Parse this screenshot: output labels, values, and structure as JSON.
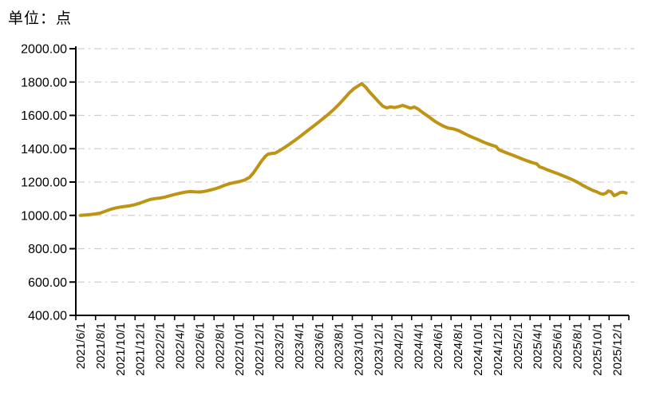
{
  "page": {
    "background": "#FFFFFF"
  },
  "header": {
    "unit_label": "单位：点"
  },
  "chart_data": {
    "type": "line",
    "title": "单位：点",
    "legend": "none",
    "grid": {
      "orientation": "horizontal",
      "style": "dash-dot",
      "color": "#D0D0D0"
    },
    "axis_color": "#000000",
    "y_axis": {
      "min": 400,
      "max": 2000,
      "step": 200,
      "tick_labels": [
        "2000.00",
        "1800.00",
        "1600.00",
        "1400.00",
        "1200.00",
        "1000.00",
        "800.00",
        "600.00",
        "400.00"
      ]
    },
    "x_axis": {
      "tick_labels": [
        "2021/6/1",
        "2021/8/1",
        "2021/10/1",
        "2021/12/1",
        "2022/2/1",
        "2022/4/1",
        "2022/6/1",
        "2022/8/1",
        "2022/10/1",
        "2022/12/1",
        "2023/2/1",
        "2023/4/1",
        "2023/6/1",
        "2023/8/1",
        "2023/10/1",
        "2023/12/1",
        "2024/2/1",
        "2024/4/1",
        "2024/6/1",
        "2024/8/1",
        "2024/10/1",
        "2024/12/1",
        "2025/2/1",
        "2025/4/1",
        "2025/6/1",
        "2025/8/1",
        "2025/10/1",
        "2025/12/1"
      ],
      "label_rotation_deg": -90
    },
    "points_format": "[months_since_2021/6/1, index_value]",
    "series": [
      {
        "color": "#BF9414",
        "stroke_width": 4,
        "points": [
          [
            0,
            1000
          ],
          [
            0.5,
            1002
          ],
          [
            1,
            1005
          ],
          [
            1.5,
            1009
          ],
          [
            2,
            1014
          ],
          [
            2.5,
            1025
          ],
          [
            3,
            1036
          ],
          [
            3.5,
            1044
          ],
          [
            4,
            1050
          ],
          [
            4.5,
            1054
          ],
          [
            5,
            1058
          ],
          [
            5.5,
            1065
          ],
          [
            6,
            1074
          ],
          [
            6.5,
            1085
          ],
          [
            7,
            1095
          ],
          [
            7.5,
            1101
          ],
          [
            8,
            1104
          ],
          [
            8.5,
            1110
          ],
          [
            9,
            1118
          ],
          [
            9.5,
            1126
          ],
          [
            10,
            1133
          ],
          [
            10.5,
            1139
          ],
          [
            11,
            1143
          ],
          [
            11.5,
            1141
          ],
          [
            12,
            1140
          ],
          [
            12.5,
            1144
          ],
          [
            13,
            1151
          ],
          [
            13.5,
            1159
          ],
          [
            14,
            1169
          ],
          [
            14.5,
            1181
          ],
          [
            15,
            1190
          ],
          [
            15.5,
            1197
          ],
          [
            16,
            1203
          ],
          [
            16.5,
            1212
          ],
          [
            17,
            1228
          ],
          [
            17.4,
            1255
          ],
          [
            17.8,
            1290
          ],
          [
            18.2,
            1325
          ],
          [
            18.6,
            1355
          ],
          [
            18.9,
            1368
          ],
          [
            19.3,
            1372
          ],
          [
            19.6,
            1374
          ],
          [
            20,
            1388
          ],
          [
            20.5,
            1406
          ],
          [
            21,
            1426
          ],
          [
            21.5,
            1447
          ],
          [
            22,
            1469
          ],
          [
            22.5,
            1492
          ],
          [
            23,
            1515
          ],
          [
            23.5,
            1538
          ],
          [
            24,
            1561
          ],
          [
            24.5,
            1585
          ],
          [
            25,
            1610
          ],
          [
            25.5,
            1637
          ],
          [
            26,
            1666
          ],
          [
            26.5,
            1698
          ],
          [
            27,
            1732
          ],
          [
            27.5,
            1760
          ],
          [
            28,
            1779
          ],
          [
            28.3,
            1790
          ],
          [
            28.7,
            1769
          ],
          [
            29,
            1746
          ],
          [
            29.5,
            1713
          ],
          [
            30,
            1681
          ],
          [
            30.4,
            1656
          ],
          [
            30.8,
            1645
          ],
          [
            31.2,
            1651
          ],
          [
            31.6,
            1647
          ],
          [
            32,
            1652
          ],
          [
            32.4,
            1660
          ],
          [
            32.8,
            1652
          ],
          [
            33.2,
            1643
          ],
          [
            33.6,
            1650
          ],
          [
            34,
            1637
          ],
          [
            34.4,
            1618
          ],
          [
            34.8,
            1602
          ],
          [
            35.2,
            1585
          ],
          [
            35.6,
            1567
          ],
          [
            36,
            1552
          ],
          [
            36.5,
            1536
          ],
          [
            37,
            1524
          ],
          [
            37.5,
            1519
          ],
          [
            38,
            1510
          ],
          [
            38.5,
            1495
          ],
          [
            39,
            1480
          ],
          [
            39.5,
            1467
          ],
          [
            40,
            1455
          ],
          [
            40.5,
            1441
          ],
          [
            41,
            1429
          ],
          [
            41.5,
            1419
          ],
          [
            41.8,
            1414
          ],
          [
            42.1,
            1394
          ],
          [
            42.5,
            1384
          ],
          [
            43,
            1372
          ],
          [
            43.5,
            1361
          ],
          [
            44,
            1349
          ],
          [
            44.5,
            1337
          ],
          [
            45,
            1326
          ],
          [
            45.5,
            1316
          ],
          [
            45.9,
            1309
          ],
          [
            46.2,
            1291
          ],
          [
            46.6,
            1283
          ],
          [
            47,
            1273
          ],
          [
            47.5,
            1262
          ],
          [
            48,
            1251
          ],
          [
            48.5,
            1239
          ],
          [
            49,
            1227
          ],
          [
            49.5,
            1214
          ],
          [
            50,
            1199
          ],
          [
            50.5,
            1182
          ],
          [
            51,
            1166
          ],
          [
            51.5,
            1151
          ],
          [
            52,
            1140
          ],
          [
            52.3,
            1131
          ],
          [
            52.6,
            1127
          ],
          [
            52.9,
            1134
          ],
          [
            53.1,
            1147
          ],
          [
            53.4,
            1141
          ],
          [
            53.7,
            1118
          ],
          [
            54,
            1126
          ],
          [
            54.3,
            1137
          ],
          [
            54.6,
            1139
          ],
          [
            54.9,
            1134
          ]
        ]
      }
    ]
  }
}
